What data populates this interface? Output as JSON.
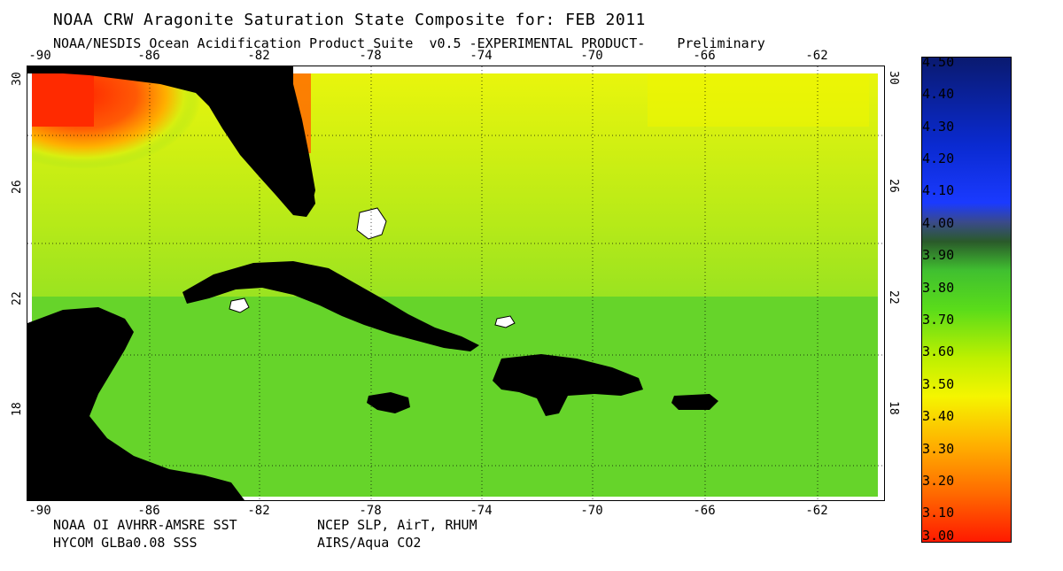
{
  "header": {
    "title": "NOAA CRW Aragonite Saturation State Composite for: FEB 2011",
    "subtitle": "NOAA/NESDIS Ocean Acidification Product Suite  v0.5 -EXPERIMENTAL PRODUCT-    Preliminary"
  },
  "axes": {
    "longitude_ticks": [
      "-90",
      "-86",
      "-82",
      "-78",
      "-74",
      "-70",
      "-66",
      "-62"
    ],
    "latitude_ticks": [
      "30",
      "26",
      "22",
      "18"
    ]
  },
  "credits": {
    "line1_left": "NOAA OI AVHRR-AMSRE SST",
    "line2_left": "HYCOM GLBa0.08 SSS",
    "line1_right": "NCEP SLP, AirT, RHUM",
    "line2_right": "AIRS/Aqua CO2"
  },
  "colorbar": {
    "labels": [
      "4.50",
      "4.40",
      "4.30",
      "4.20",
      "4.10",
      "4.00",
      "3.90",
      "3.80",
      "3.70",
      "3.60",
      "3.50",
      "3.40",
      "3.30",
      "3.20",
      "3.10",
      "3.00"
    ],
    "colors": {
      "high": "#0a1a8c",
      "mid": "#3a8a2a",
      "green": "#4cd41a",
      "yellow": "#f5f500",
      "orange": "#ff9900",
      "low": "#ff2200"
    }
  },
  "map": {
    "ocean_color": "#6fdc2c",
    "land_color": "#000000",
    "warm_region_color": "#ff3a0a"
  }
}
